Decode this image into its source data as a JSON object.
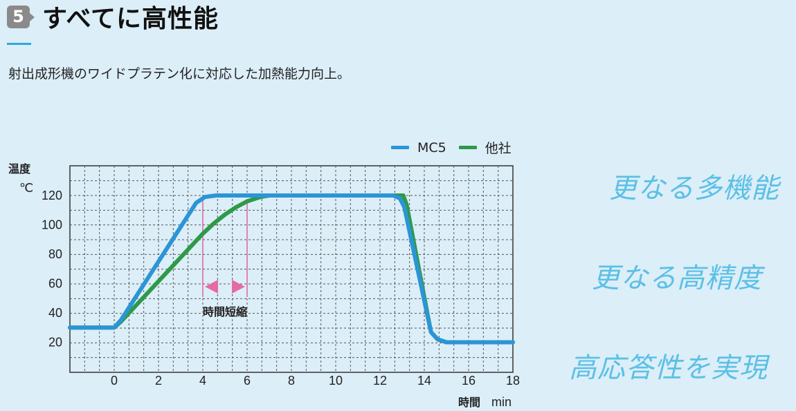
{
  "header": {
    "number": "5",
    "title": "すべてに高性能",
    "subtitle": "射出成形機のワイドプラテン化に対応した加熱能力向上。"
  },
  "features": [
    "更なる多機能",
    "更なる高精度",
    "高応答性を実現"
  ],
  "colors": {
    "background": "#dceef8",
    "accent": "#2fa7dc",
    "feature_text": "#5bc0e6",
    "mc5": "#2b95d6",
    "other": "#2e9a48",
    "annotation": "#e0408a"
  },
  "chart_data": {
    "type": "line",
    "xlabel": "時間",
    "xunit": "min",
    "ylabel": "温度",
    "yunit": "℃",
    "xlim": [
      -2,
      18
    ],
    "ylim": [
      0,
      140
    ],
    "xticks": [
      0,
      2,
      4,
      6,
      8,
      10,
      12,
      14,
      16,
      18
    ],
    "yticks": [
      20,
      40,
      60,
      80,
      100,
      120
    ],
    "grid": true,
    "legend_position": "top-right",
    "series": [
      {
        "name": "MC5",
        "color": "#2b95d6",
        "x": [
          -2,
          0,
          0.3,
          3.7,
          4.1,
          4.6,
          12.6,
          12.9,
          13.1,
          14.3,
          14.6,
          15.0,
          18
        ],
        "y": [
          30,
          30,
          35,
          115,
          119,
          120,
          120,
          118,
          112,
          27,
          22,
          20,
          20
        ]
      },
      {
        "name": "他社",
        "color": "#2e9a48",
        "x": [
          -2,
          0,
          0.3,
          4.0,
          4.5,
          5.0,
          5.5,
          6.0,
          6.6,
          7.0,
          12.8,
          13.05,
          13.2,
          14.3,
          14.6,
          15.0,
          18
        ],
        "y": [
          30,
          30,
          34,
          94,
          101,
          107,
          112,
          116,
          119,
          120,
          120,
          120,
          114,
          27,
          22,
          20,
          20
        ]
      }
    ],
    "annotation": {
      "label": "時間短縮",
      "x_from": 4,
      "x_to": 6
    }
  }
}
